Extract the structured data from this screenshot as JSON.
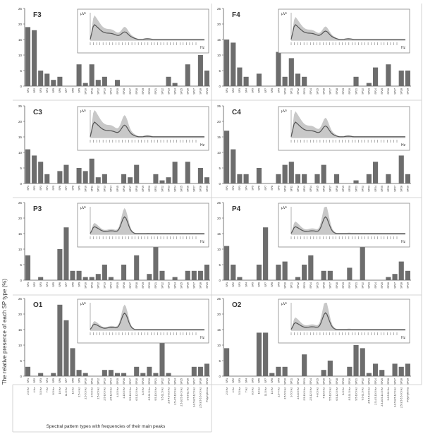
{
  "figure": {
    "ylabel": "The relative presence of each SP type (%)",
    "xlabel": "Spectral pattern types with frequencies of their main peaks",
    "inset_ylabel": "µV²",
    "inset_xlabel": "Hz",
    "bar_color": "#6d6d6d",
    "inset_band_color": "#c8c8c8",
    "inset_line_color": "#555555"
  },
  "chart_data": {
    "type": "bar",
    "ylim": [
      0,
      25
    ],
    "yticks": [
      0,
      5,
      10,
      15,
      20,
      25
    ],
    "grid": false,
    "categories": [
      "SP1",
      "SP2",
      "SP3",
      "SP4",
      "SP5",
      "SP6",
      "SP7",
      "SP8",
      "SP9",
      "SP10",
      "SP11",
      "SP12",
      "SP13",
      "SP14",
      "SP15",
      "SP16",
      "SP17",
      "SP18",
      "SP19",
      "SP20",
      "SP21",
      "SP22",
      "SP23",
      "SP24",
      "SP25",
      "SP26",
      "SP27",
      "SP28",
      "SP29"
    ],
    "peak_frequencies": [
      "2.5 Hz",
      "4 Hz",
      "5.5 Hz",
      "7 Hz",
      "8.5 Hz",
      "10 Hz",
      "11.5 Hz",
      "13 Hz",
      "2.5-4 Hz",
      "2.5-5.5 Hz",
      "3-5.5 Hz",
      "2.5-8.5 Hz",
      "2.5-10.5 Hz",
      "2.5-12.5 Hz",
      "4-8.5 Hz",
      "4-10.5 Hz",
      "5.5-10.5 Hz",
      "6.5-12.5 Hz",
      "8-9 Hz",
      "8.5-11.5 Hz",
      "9.5-10.5 Hz",
      "9.5-11.5 Hz",
      "2.5-4.5-8.5 Hz",
      "2.5-4.5-10.5 Hz",
      "2.5-10.5-14.5 Hz",
      "3-6.5-11 Hz",
      "3-6.5-8.5-12.5 Hz",
      "2.5-3.5-5.5-9.5 Hz",
      "Polyrhythmia"
    ],
    "panels": [
      {
        "name": "F3",
        "values": [
          19,
          18,
          5,
          4,
          2,
          3,
          0,
          0,
          7,
          1,
          7,
          2,
          3,
          0,
          2,
          0,
          0,
          0,
          0,
          0,
          0,
          0,
          3,
          1,
          0,
          7,
          0,
          10,
          5
        ]
      },
      {
        "name": "F4",
        "values": [
          15,
          14,
          6,
          3,
          0,
          4,
          0,
          0,
          11,
          3,
          9,
          4,
          3,
          0,
          0,
          0,
          0,
          0,
          0,
          0,
          3,
          0,
          1,
          6,
          0,
          7,
          0,
          5,
          5
        ]
      },
      {
        "name": "C3",
        "values": [
          11,
          9,
          7,
          3,
          0,
          4,
          6,
          0,
          5,
          4,
          8,
          2,
          3,
          0,
          0,
          3,
          2,
          6,
          0,
          0,
          3,
          1,
          2,
          7,
          0,
          7,
          0,
          5,
          2
        ]
      },
      {
        "name": "C4",
        "values": [
          17,
          11,
          3,
          3,
          0,
          5,
          0,
          0,
          3,
          6,
          7,
          3,
          3,
          0,
          3,
          6,
          0,
          3,
          0,
          0,
          1,
          0,
          3,
          7,
          0,
          3,
          0,
          9,
          3
        ]
      },
      {
        "name": "P3",
        "values": [
          8,
          0,
          1,
          0,
          0,
          10,
          17,
          3,
          3,
          1,
          1,
          2,
          5,
          1,
          0,
          5,
          0,
          8,
          0,
          2,
          11,
          3,
          0,
          1,
          0,
          3,
          3,
          3,
          5
        ]
      },
      {
        "name": "P4",
        "values": [
          11,
          5,
          1,
          0,
          0,
          5,
          17,
          0,
          5,
          6,
          0,
          1,
          5,
          8,
          0,
          3,
          3,
          0,
          0,
          4,
          0,
          11,
          0,
          0,
          0,
          1,
          2,
          6,
          3
        ]
      },
      {
        "name": "O1",
        "values": [
          3,
          0,
          1,
          0,
          1,
          23,
          18,
          9,
          2,
          1,
          0,
          0,
          2,
          2,
          1,
          1,
          0,
          3,
          1,
          3,
          1,
          11,
          1,
          0,
          0,
          0,
          3,
          3,
          4
        ]
      },
      {
        "name": "O2",
        "values": [
          9,
          0,
          0,
          0,
          0,
          14,
          14,
          1,
          3,
          3,
          0,
          0,
          7,
          0,
          0,
          2,
          5,
          0,
          0,
          3,
          10,
          9,
          1,
          4,
          2,
          0,
          4,
          3,
          4
        ]
      }
    ]
  }
}
